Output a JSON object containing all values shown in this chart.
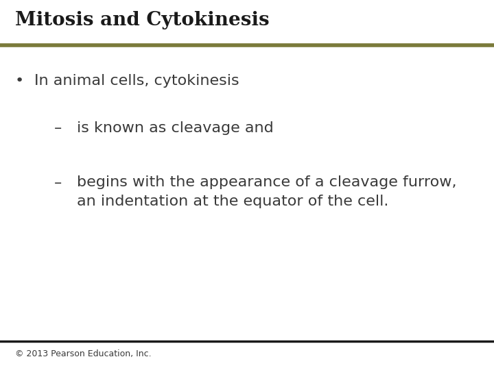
{
  "title": "Mitosis and Cytokinesis",
  "title_color": "#1a1a1a",
  "title_fontsize": 20,
  "title_bold": true,
  "separator_color_top": "#7a7a3a",
  "separator_color_bottom": "#1a1a1a",
  "bg_color": "#ffffff",
  "bullet_text": "In animal cells, cytokinesis",
  "sub_bullet_1": "is known as cleavage and",
  "sub_bullet_2": "begins with the appearance of a cleavage furrow,\nan indentation at the equator of the cell.",
  "footer_text": "© 2013 Pearson Education, Inc.",
  "text_color": "#3a3a3a",
  "text_fontsize": 16,
  "footer_fontsize": 9
}
